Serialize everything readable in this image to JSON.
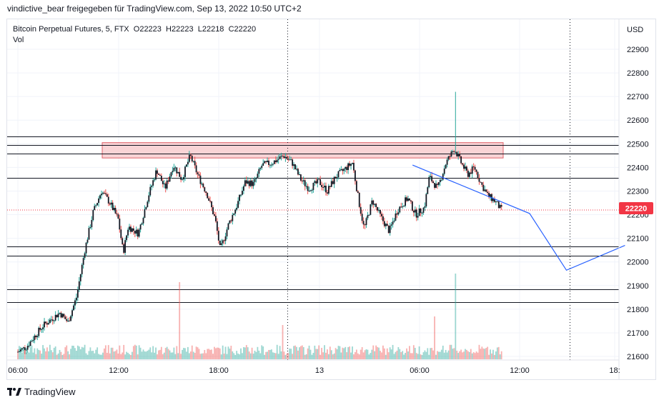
{
  "header": {
    "user": "vindictive_bear",
    "shared_with": "freigegeben für TradingView.com",
    "datetime": "Sep 13, 2022 10:50 UTC+2"
  },
  "legend": {
    "symbol": "Bitcoin Perpetual Futures, 5, FTX",
    "open": "O22223",
    "high": "H22223",
    "low": "L22218",
    "close": "C22220",
    "volume_label": "Vol"
  },
  "footer": {
    "brand": "TradingView",
    "logo_icon": "tradingview-logo-icon"
  },
  "colors": {
    "up": "#26a69a",
    "down": "#ef5350",
    "candle_body": "#131722",
    "zone_fill": "#f7c9cc",
    "zone_stroke": "#e0626b",
    "trendline": "#2962ff",
    "price_tag": "#f23645"
  },
  "chart_data": {
    "type": "candlestick",
    "currency": "USD",
    "y_ticks": [
      "22900",
      "22800",
      "22700",
      "22600",
      "22500",
      "22400",
      "22300",
      "22200",
      "22100",
      "22000",
      "21900",
      "21800",
      "21700",
      "21600"
    ],
    "x_ticks": [
      "06:00",
      "12:00",
      "18:00",
      "13",
      "06:00",
      "12:00",
      "18:"
    ],
    "ylim": [
      21560,
      23050
    ],
    "xlim_hours": [
      5.5,
      42.5
    ],
    "current_price": "22220",
    "support_resistance_levels": [
      22530,
      22495,
      22460,
      22355,
      22065,
      22025,
      21885,
      21830
    ],
    "resistance_zone": [
      22440,
      22505
    ],
    "dotted_vertical_lines_hours": [
      21.9,
      39.8
    ],
    "trendline": [
      {
        "t": 29.6,
        "p": 22410
      },
      {
        "t": 36.6,
        "p": 22205
      },
      {
        "t": 38.8,
        "p": 21965
      },
      {
        "t": 42.3,
        "p": 22070
      }
    ],
    "price_path": [
      {
        "t": 6.0,
        "p": 21620
      },
      {
        "t": 6.5,
        "p": 21640
      },
      {
        "t": 7.5,
        "p": 21730
      },
      {
        "t": 8.5,
        "p": 21785
      },
      {
        "t": 9.0,
        "p": 21745
      },
      {
        "t": 9.5,
        "p": 21850
      },
      {
        "t": 10.0,
        "p": 22050
      },
      {
        "t": 10.5,
        "p": 22210
      },
      {
        "t": 11.0,
        "p": 22300
      },
      {
        "t": 11.5,
        "p": 22250
      },
      {
        "t": 12.0,
        "p": 22180
      },
      {
        "t": 12.3,
        "p": 22040
      },
      {
        "t": 12.6,
        "p": 22150
      },
      {
        "t": 13.2,
        "p": 22120
      },
      {
        "t": 13.8,
        "p": 22280
      },
      {
        "t": 14.3,
        "p": 22390
      },
      {
        "t": 14.8,
        "p": 22310
      },
      {
        "t": 15.3,
        "p": 22410
      },
      {
        "t": 15.8,
        "p": 22350
      },
      {
        "t": 16.3,
        "p": 22450
      },
      {
        "t": 16.8,
        "p": 22360
      },
      {
        "t": 17.3,
        "p": 22290
      },
      {
        "t": 17.8,
        "p": 22180
      },
      {
        "t": 18.1,
        "p": 22050
      },
      {
        "t": 18.6,
        "p": 22160
      },
      {
        "t": 19.1,
        "p": 22240
      },
      {
        "t": 19.6,
        "p": 22340
      },
      {
        "t": 20.1,
        "p": 22330
      },
      {
        "t": 20.6,
        "p": 22410
      },
      {
        "t": 21.2,
        "p": 22420
      },
      {
        "t": 21.9,
        "p": 22450
      },
      {
        "t": 22.4,
        "p": 22420
      },
      {
        "t": 22.9,
        "p": 22350
      },
      {
        "t": 23.4,
        "p": 22310
      },
      {
        "t": 24.0,
        "p": 22340
      },
      {
        "t": 24.5,
        "p": 22300
      },
      {
        "t": 25.0,
        "p": 22360
      },
      {
        "t": 25.5,
        "p": 22390
      },
      {
        "t": 26.0,
        "p": 22420
      },
      {
        "t": 26.4,
        "p": 22250
      },
      {
        "t": 26.7,
        "p": 22140
      },
      {
        "t": 27.2,
        "p": 22260
      },
      {
        "t": 27.7,
        "p": 22190
      },
      {
        "t": 28.2,
        "p": 22130
      },
      {
        "t": 28.7,
        "p": 22220
      },
      {
        "t": 29.3,
        "p": 22270
      },
      {
        "t": 29.8,
        "p": 22200
      },
      {
        "t": 30.3,
        "p": 22230
      },
      {
        "t": 30.6,
        "p": 22360
      },
      {
        "t": 31.1,
        "p": 22310
      },
      {
        "t": 31.6,
        "p": 22420
      },
      {
        "t": 32.1,
        "p": 22480
      },
      {
        "t": 32.5,
        "p": 22420
      },
      {
        "t": 32.9,
        "p": 22370
      },
      {
        "t": 33.3,
        "p": 22400
      },
      {
        "t": 33.7,
        "p": 22330
      },
      {
        "t": 34.1,
        "p": 22280
      },
      {
        "t": 34.5,
        "p": 22260
      },
      {
        "t": 34.9,
        "p": 22220
      }
    ],
    "price_spike": {
      "t": 32.2,
      "high": 22720
    },
    "volume_spikes": [
      {
        "t": 15.7,
        "v": 0.9
      },
      {
        "t": 32.2,
        "v": 1.0
      },
      {
        "t": 21.8,
        "v": 0.4
      },
      {
        "t": 30.9,
        "v": 0.5
      }
    ]
  }
}
